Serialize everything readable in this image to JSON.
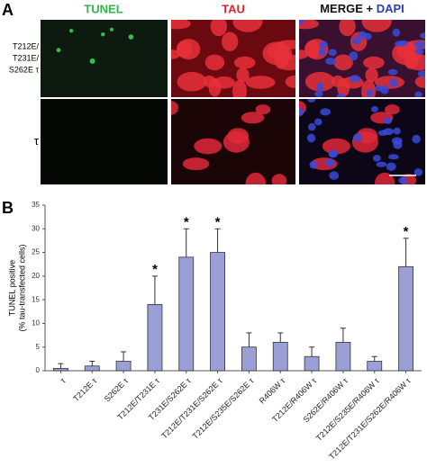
{
  "panel_a": {
    "label": "A",
    "columns": {
      "tunel": "TUNEL",
      "tau": "TAU",
      "merge": "MERGE + ",
      "dapi": "DAPI"
    },
    "rows": [
      [
        "T212E/",
        "T231E/",
        "S262E τ"
      ],
      [
        "τ"
      ]
    ]
  },
  "chart_data": {
    "type": "bar",
    "panel_label": "B",
    "ylabel": [
      "TUNEL positive",
      "(% tau-transfected cells)"
    ],
    "categories": [
      "τ",
      "T212E τ",
      "S262E τ",
      "T212E/T231E τ",
      "T231E/S262E τ",
      "T212E/T231E/S262E τ",
      "T212E/S235E/S262E τ",
      "R406W τ",
      "T212E/R406W τ",
      "S262E/R406W τ",
      "T212E/S235E/R406W τ",
      "T212E/T231E/S262E/R406W τ"
    ],
    "values": [
      0.5,
      1,
      2,
      14,
      24,
      25,
      5,
      6,
      3,
      6,
      2,
      22
    ],
    "errors": [
      1,
      1,
      2,
      6,
      6,
      5,
      3,
      2,
      2,
      3,
      1,
      6
    ],
    "significance": [
      null,
      null,
      null,
      "*",
      "*",
      "*",
      null,
      null,
      null,
      null,
      null,
      "*"
    ],
    "color": "#9a9fd6",
    "ylim": [
      0,
      35
    ],
    "yticks": [
      0,
      5,
      10,
      15,
      20,
      25,
      30,
      35
    ]
  }
}
